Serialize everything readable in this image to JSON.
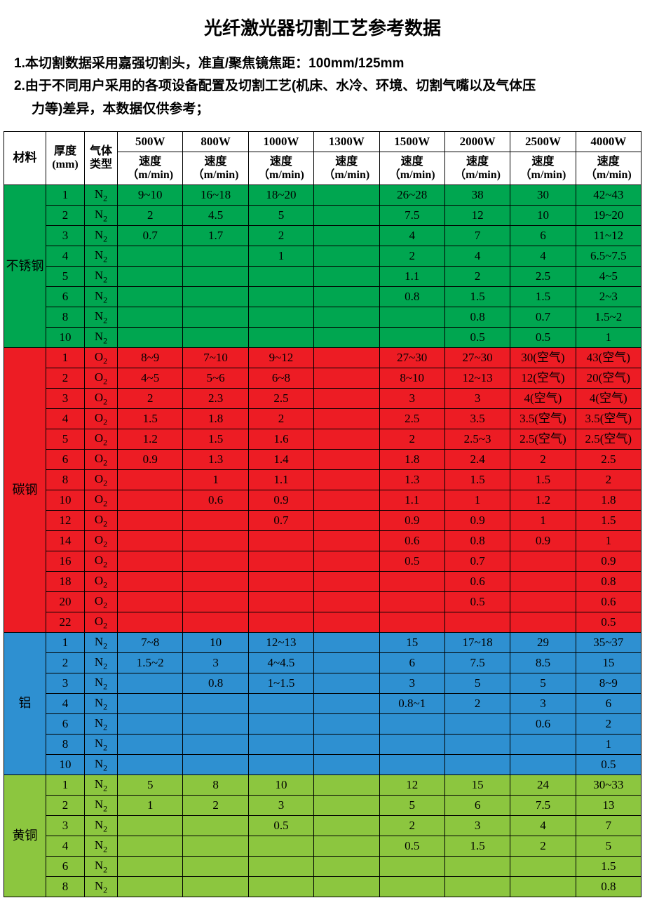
{
  "title": "光纤激光器切割工艺参考数据",
  "notes": [
    "1.本切割数据采用嘉强切割头，准直/聚焦镜焦距：100mm/125mm",
    "2.由于不同用户采用的各项设备配置及切割工艺(机床、水冷、环境、切割气嘴以及气体压",
    "力等)差异，本数据仅供参考；"
  ],
  "headers": {
    "material": "材料",
    "thickness": "厚度(mm)",
    "gas": "气体类型",
    "speed_label": "速度（m/min)",
    "powers": [
      "500W",
      "800W",
      "1000W",
      "1300W",
      "1500W",
      "2000W",
      "2500W",
      "4000W"
    ]
  },
  "colors": {
    "stainless": "#00a650",
    "carbon": "#ed1c24",
    "aluminum": "#2e90d1",
    "brass": "#8cc63f",
    "border": "#000000",
    "header_bg": "#ffffff"
  },
  "materials": [
    {
      "name": "不锈钢",
      "color": "#00a650",
      "rows": [
        {
          "t": "1",
          "g": "N₂",
          "v": [
            "9~10",
            "16~18",
            "18~20",
            "",
            "26~28",
            "38",
            "30",
            "42~43"
          ]
        },
        {
          "t": "2",
          "g": "N₂",
          "v": [
            "2",
            "4.5",
            "5",
            "",
            "7.5",
            "12",
            "10",
            "19~20"
          ]
        },
        {
          "t": "3",
          "g": "N₂",
          "v": [
            "0.7",
            "1.7",
            "2",
            "",
            "4",
            "7",
            "6",
            "11~12"
          ]
        },
        {
          "t": "4",
          "g": "N₂",
          "v": [
            "",
            "",
            "1",
            "",
            "2",
            "4",
            "4",
            "6.5~7.5"
          ]
        },
        {
          "t": "5",
          "g": "N₂",
          "v": [
            "",
            "",
            "",
            "",
            "1.1",
            "2",
            "2.5",
            "4~5"
          ]
        },
        {
          "t": "6",
          "g": "N₂",
          "v": [
            "",
            "",
            "",
            "",
            "0.8",
            "1.5",
            "1.5",
            "2~3"
          ]
        },
        {
          "t": "8",
          "g": "N₂",
          "v": [
            "",
            "",
            "",
            "",
            "",
            "0.8",
            "0.7",
            "1.5~2"
          ]
        },
        {
          "t": "10",
          "g": "N₂",
          "v": [
            "",
            "",
            "",
            "",
            "",
            "0.5",
            "0.5",
            "1"
          ]
        }
      ]
    },
    {
      "name": "碳钢",
      "color": "#ed1c24",
      "rows": [
        {
          "t": "1",
          "g": "O₂",
          "v": [
            "8~9",
            "7~10",
            "9~12",
            "",
            "27~30",
            "27~30",
            "30(空气)",
            "43(空气)"
          ]
        },
        {
          "t": "2",
          "g": "O₂",
          "v": [
            "4~5",
            "5~6",
            "6~8",
            "",
            "8~10",
            "12~13",
            "12(空气)",
            "20(空气)"
          ]
        },
        {
          "t": "3",
          "g": "O₂",
          "v": [
            "2",
            "2.3",
            "2.5",
            "",
            "3",
            "3",
            "4(空气)",
            "4(空气)"
          ]
        },
        {
          "t": "4",
          "g": "O₂",
          "v": [
            "1.5",
            "1.8",
            "2",
            "",
            "2.5",
            "3.5",
            "3.5(空气)",
            "3.5(空气)"
          ]
        },
        {
          "t": "5",
          "g": "O₂",
          "v": [
            "1.2",
            "1.5",
            "1.6",
            "",
            "2",
            "2.5~3",
            "2.5(空气)",
            "2.5(空气)"
          ]
        },
        {
          "t": "6",
          "g": "O₂",
          "v": [
            "0.9",
            "1.3",
            "1.4",
            "",
            "1.8",
            "2.4",
            "2",
            "2.5"
          ]
        },
        {
          "t": "8",
          "g": "O₂",
          "v": [
            "",
            "1",
            "1.1",
            "",
            "1.3",
            "1.5",
            "1.5",
            "2"
          ]
        },
        {
          "t": "10",
          "g": "O₂",
          "v": [
            "",
            "0.6",
            "0.9",
            "",
            "1.1",
            "1",
            "1.2",
            "1.8"
          ]
        },
        {
          "t": "12",
          "g": "O₂",
          "v": [
            "",
            "",
            "0.7",
            "",
            "0.9",
            "0.9",
            "1",
            "1.5"
          ]
        },
        {
          "t": "14",
          "g": "O₂",
          "v": [
            "",
            "",
            "",
            "",
            "0.6",
            "0.8",
            "0.9",
            "1"
          ]
        },
        {
          "t": "16",
          "g": "O₂",
          "v": [
            "",
            "",
            "",
            "",
            "0.5",
            "0.7",
            "",
            "0.9"
          ]
        },
        {
          "t": "18",
          "g": "O₂",
          "v": [
            "",
            "",
            "",
            "",
            "",
            "0.6",
            "",
            "0.8"
          ]
        },
        {
          "t": "20",
          "g": "O₂",
          "v": [
            "",
            "",
            "",
            "",
            "",
            "0.5",
            "",
            "0.6"
          ]
        },
        {
          "t": "22",
          "g": "O₂",
          "v": [
            "",
            "",
            "",
            "",
            "",
            "",
            "",
            "0.5"
          ]
        }
      ]
    },
    {
      "name": "铝",
      "color": "#2e90d1",
      "rows": [
        {
          "t": "1",
          "g": "N₂",
          "v": [
            "7~8",
            "10",
            "12~13",
            "",
            "15",
            "17~18",
            "29",
            "35~37"
          ]
        },
        {
          "t": "2",
          "g": "N₂",
          "v": [
            "1.5~2",
            "3",
            "4~4.5",
            "",
            "6",
            "7.5",
            "8.5",
            "15"
          ]
        },
        {
          "t": "3",
          "g": "N₂",
          "v": [
            "",
            "0.8",
            "1~1.5",
            "",
            "3",
            "5",
            "5",
            "8~9"
          ]
        },
        {
          "t": "4",
          "g": "N₂",
          "v": [
            "",
            "",
            "",
            "",
            "0.8~1",
            "2",
            "3",
            "6"
          ]
        },
        {
          "t": "6",
          "g": "N₂",
          "v": [
            "",
            "",
            "",
            "",
            "",
            "",
            "0.6",
            "2"
          ]
        },
        {
          "t": "8",
          "g": "N₂",
          "v": [
            "",
            "",
            "",
            "",
            "",
            "",
            "",
            "1"
          ]
        },
        {
          "t": "10",
          "g": "N₂",
          "v": [
            "",
            "",
            "",
            "",
            "",
            "",
            "",
            "0.5"
          ]
        }
      ]
    },
    {
      "name": "黄铜",
      "color": "#8cc63f",
      "rows": [
        {
          "t": "1",
          "g": "N₂",
          "v": [
            "5",
            "8",
            "10",
            "",
            "12",
            "15",
            "24",
            "30~33"
          ]
        },
        {
          "t": "2",
          "g": "N₂",
          "v": [
            "1",
            "2",
            "3",
            "",
            "5",
            "6",
            "7.5",
            "13"
          ]
        },
        {
          "t": "3",
          "g": "N₂",
          "v": [
            "",
            "",
            "0.5",
            "",
            "2",
            "3",
            "4",
            "7"
          ]
        },
        {
          "t": "4",
          "g": "N₂",
          "v": [
            "",
            "",
            "",
            "",
            "0.5",
            "1.5",
            "2",
            "5"
          ]
        },
        {
          "t": "6",
          "g": "N₂",
          "v": [
            "",
            "",
            "",
            "",
            "",
            "",
            "",
            "1.5"
          ]
        },
        {
          "t": "8",
          "g": "N₂",
          "v": [
            "",
            "",
            "",
            "",
            "",
            "",
            "",
            "0.8"
          ]
        }
      ]
    }
  ]
}
